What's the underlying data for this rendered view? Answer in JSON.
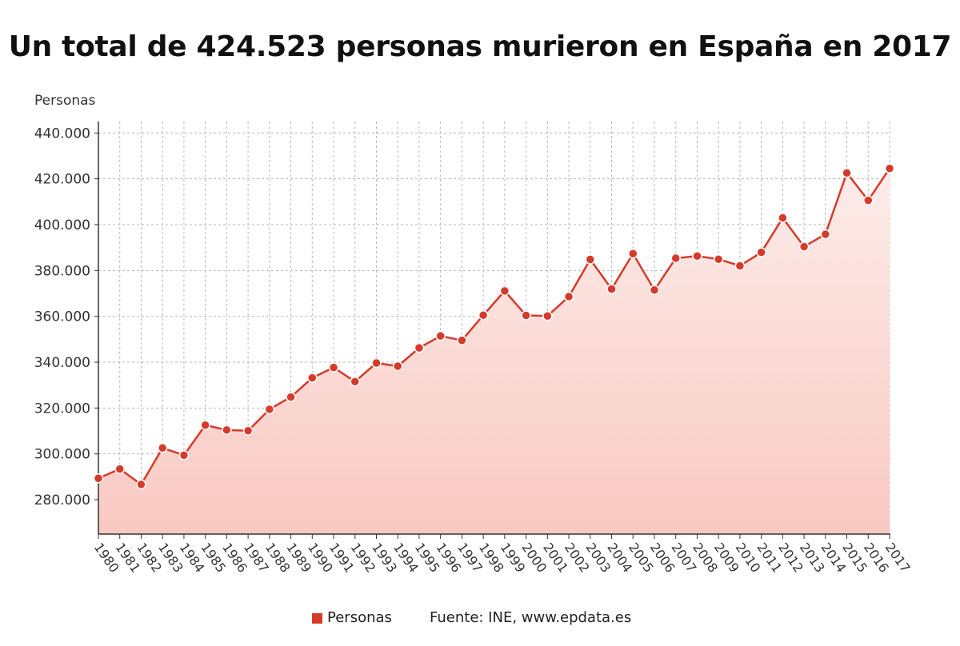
{
  "title": "Un total de 424.523 personas murieron en España en 2017",
  "source": "Fuente: INE, www.epdata.es",
  "colors": {
    "line": "#d63a2a",
    "fill_top": "#fdecea",
    "fill_bottom": "#f9c9c2",
    "grid": "#b8b8b8"
  },
  "chart_data": {
    "type": "area",
    "ylabel": "Personas",
    "xlabel": "",
    "ylim": [
      265000,
      445000
    ],
    "yticks": [
      280000,
      300000,
      320000,
      340000,
      360000,
      380000,
      400000,
      420000,
      440000
    ],
    "ytick_labels": [
      "280.000",
      "300.000",
      "320.000",
      "340.000",
      "360.000",
      "380.000",
      "400.000",
      "420.000",
      "440.000"
    ],
    "grid": true,
    "legend": "bottom",
    "categories": [
      "1980",
      "1981",
      "1982",
      "1983",
      "1984",
      "1985",
      "1986",
      "1987",
      "1988",
      "1989",
      "1990",
      "1991",
      "1992",
      "1993",
      "1994",
      "1995",
      "1996",
      "1997",
      "1998",
      "1999",
      "2000",
      "2001",
      "2002",
      "2003",
      "2004",
      "2005",
      "2006",
      "2007",
      "2008",
      "2009",
      "2010",
      "2011",
      "2012",
      "2013",
      "2014",
      "2015",
      "2016",
      "2017"
    ],
    "series": [
      {
        "name": "Personas",
        "values": [
          289344,
          293386,
          286655,
          302569,
          299409,
          312532,
          310413,
          310073,
          319437,
          324796,
          333142,
          337691,
          331515,
          339661,
          338242,
          346227,
          351449,
          349521,
          360511,
          371102,
          360391,
          360131,
          368618,
          384828,
          371934,
          387355,
          371478,
          385361,
          386324,
          384933,
          382047,
          387911,
          402950,
          390419,
          395830,
          422568,
          410611,
          424523
        ]
      }
    ]
  }
}
